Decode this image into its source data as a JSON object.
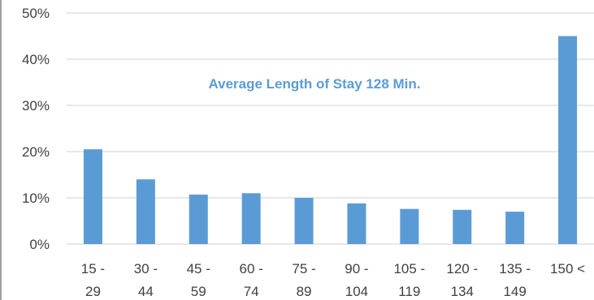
{
  "chart_data": {
    "type": "bar",
    "categories": [
      [
        "15 -",
        "29"
      ],
      [
        "30 -",
        "44"
      ],
      [
        "45 -",
        "59"
      ],
      [
        "60 -",
        "74"
      ],
      [
        "75 -",
        "89"
      ],
      [
        "90 -",
        "104"
      ],
      [
        "105 -",
        "119"
      ],
      [
        "120 -",
        "134"
      ],
      [
        "135 -",
        "149"
      ],
      [
        "150 <",
        ""
      ]
    ],
    "values": [
      0.205,
      0.14,
      0.107,
      0.11,
      0.1,
      0.088,
      0.076,
      0.074,
      0.07,
      0.45
    ],
    "title": "",
    "xlabel": "",
    "ylabel": "",
    "ylim": [
      0,
      0.5
    ],
    "yticks": [
      0,
      0.1,
      0.2,
      0.3,
      0.4,
      0.5
    ],
    "ytick_labels": [
      "0%",
      "10%",
      "20%",
      "30%",
      "40%",
      "50%"
    ],
    "grid": true,
    "legend": "none",
    "annotation": "Average Length of Stay 128 Min.",
    "colors": {
      "bar": "#5b9bd5",
      "annotation": "#5b9bd5",
      "grid": "#d9d9d9",
      "axis_text": "#404040",
      "frame": "#7f7f7f"
    }
  }
}
